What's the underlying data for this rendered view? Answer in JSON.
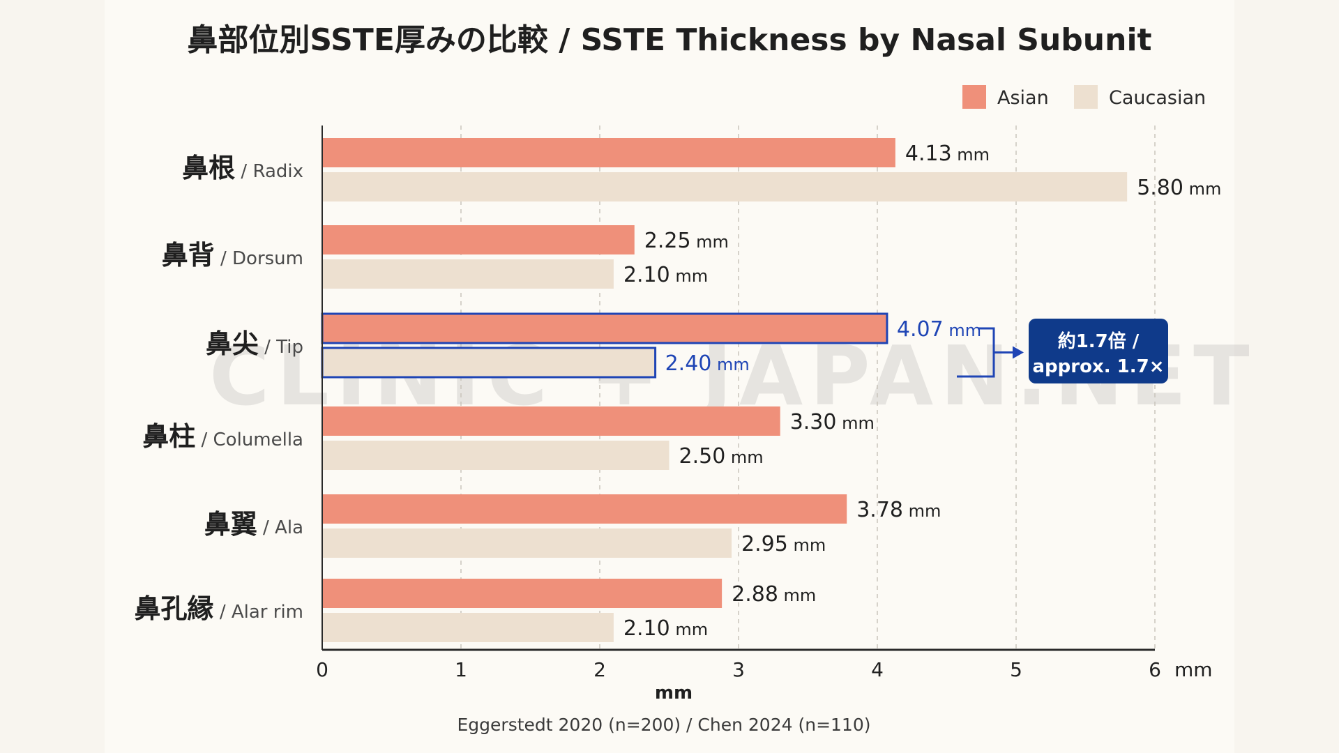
{
  "chart_data": {
    "type": "bar",
    "orientation": "horizontal",
    "title": "鼻部位別SSTE厚みの比較 / SSTE Thickness by Nasal Subunit",
    "categories": [
      {
        "jp": "鼻根",
        "en": "Radix"
      },
      {
        "jp": "鼻背",
        "en": "Dorsum"
      },
      {
        "jp": "鼻尖",
        "en": "Tip"
      },
      {
        "jp": "鼻柱",
        "en": "Columella"
      },
      {
        "jp": "鼻翼",
        "en": "Ala"
      },
      {
        "jp": "鼻孔縁",
        "en": "Alar rim"
      }
    ],
    "series": [
      {
        "name": "Asian",
        "color": "#ef907a",
        "values": [
          4.13,
          2.25,
          4.07,
          3.3,
          3.78,
          2.88
        ],
        "labels": [
          "4.13",
          "2.25",
          "4.07",
          "3.30",
          "3.78",
          "2.88"
        ]
      },
      {
        "name": "Caucasian",
        "color": "#ede0d0",
        "values": [
          5.8,
          2.1,
          2.4,
          2.5,
          2.95,
          2.1
        ],
        "labels": [
          "5.80",
          "2.10",
          "2.40",
          "2.50",
          "2.95",
          "2.10"
        ]
      }
    ],
    "value_unit": "mm",
    "xlim": [
      0,
      6
    ],
    "xticks": [
      "0",
      "1",
      "2",
      "3",
      "4",
      "5",
      "6"
    ],
    "xtick_unit": "mm",
    "xlabel": "mm",
    "grid": "vertical dashed",
    "legend_position": "top-right",
    "highlight": {
      "category_index": 2,
      "color": "#1f45b5",
      "callout": [
        "約1.7倍 /",
        "approx. 1.7×"
      ],
      "callout_bg": "#0f3a8a"
    },
    "source": "Eggerstedt 2020 (n=200) / Chen 2024 (n=110)"
  },
  "watermark": "CLINIC + JAPAN.NET"
}
